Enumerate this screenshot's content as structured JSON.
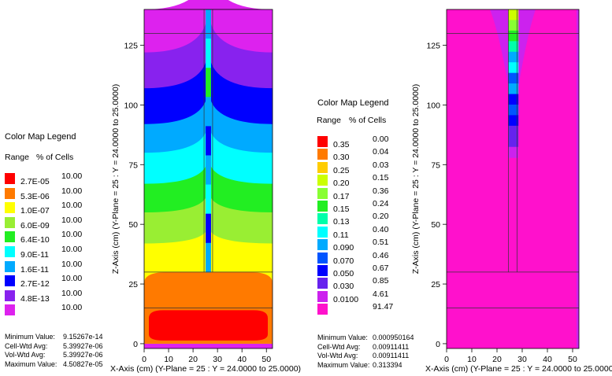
{
  "left_legend": {
    "title": "Color Map Legend",
    "range_header": "Range",
    "percent_header": "% of Cells",
    "items": [
      {
        "range": "2.7E-05",
        "percent": "10.00",
        "color": "#ff0000"
      },
      {
        "range": "5.3E-06",
        "percent": "10.00",
        "color": "#ff7a00"
      },
      {
        "range": "1.0E-07",
        "percent": "10.00",
        "color": "#ffff00"
      },
      {
        "range": "6.0E-09",
        "percent": "10.00",
        "color": "#99ee33"
      },
      {
        "range": "6.4E-10",
        "percent": "10.00",
        "color": "#22ee22"
      },
      {
        "range": "9.0E-11",
        "percent": "10.00",
        "color": "#00ffff"
      },
      {
        "range": "1.6E-11",
        "percent": "10.00",
        "color": "#00aaff"
      },
      {
        "range": "2.7E-12",
        "percent": "10.00",
        "color": "#0000ff"
      },
      {
        "range": "4.8E-13",
        "percent": "10.00",
        "color": "#8822ee"
      },
      {
        "range": "",
        "percent": "10.00",
        "color": "#dd22ee"
      }
    ],
    "stats": [
      {
        "label": "Minimum Value:",
        "value": "9.15267e-14"
      },
      {
        "label": "Cell-Wtd Avg:",
        "value": "5.39927e-06"
      },
      {
        "label": "Vol-Wtd Avg:",
        "value": "5.39927e-06"
      },
      {
        "label": "Maximum Value:",
        "value": "4.50827e-05"
      }
    ]
  },
  "right_legend": {
    "title": "Color Map Legend",
    "range_header": "Range",
    "percent_header": "% of Cells",
    "items": [
      {
        "range": "0.35",
        "percent": "0.00",
        "color": "#ff0000"
      },
      {
        "range": "0.30",
        "percent": "0.04",
        "color": "#ff7a00"
      },
      {
        "range": "0.25",
        "percent": "0.03",
        "color": "#ffcc00"
      },
      {
        "range": "0.20",
        "percent": "0.15",
        "color": "#ccff00"
      },
      {
        "range": "0.17",
        "percent": "0.36",
        "color": "#88ff33"
      },
      {
        "range": "0.15",
        "percent": "0.24",
        "color": "#22ee22"
      },
      {
        "range": "0.13",
        "percent": "0.20",
        "color": "#00ffaa"
      },
      {
        "range": "0.11",
        "percent": "0.40",
        "color": "#00ffff"
      },
      {
        "range": "0.090",
        "percent": "0.51",
        "color": "#00aaff"
      },
      {
        "range": "0.070",
        "percent": "0.46",
        "color": "#0055ff"
      },
      {
        "range": "0.050",
        "percent": "0.67",
        "color": "#0000ff"
      },
      {
        "range": "0.030",
        "percent": "0.85",
        "color": "#6622ee"
      },
      {
        "range": "0.0100",
        "percent": "4.61",
        "color": "#cc22ee"
      },
      {
        "range": "",
        "percent": "91.47",
        "color": "#ff11cc"
      }
    ],
    "stats": [
      {
        "label": "Minimum Value:",
        "value": "0.000950164"
      },
      {
        "label": "Cell-Wtd Avg:",
        "value": "0.00911411"
      },
      {
        "label": "Vol-Wtd Avg:",
        "value": "0.00911411"
      },
      {
        "label": "Maximum Value:",
        "value": "0.313394"
      }
    ]
  },
  "chart_data": [
    {
      "type": "heatmap",
      "xlabel": "X-Axis (cm) (Y-Plane = 25 : Y = 24.0000 to 25.0000)",
      "ylabel": "Z-Axis (cm) (Y-Plane = 25 : Y = 24.0000 to 25.0000)",
      "xlim": [
        0,
        52.5
      ],
      "ylim": [
        -2,
        140
      ],
      "x_ticks": [
        "0",
        "10",
        "20",
        "30",
        "40",
        "50"
      ],
      "y_ticks": [
        "0",
        "25",
        "50",
        "75",
        "100",
        "125"
      ],
      "x_tick_values": [
        0,
        10,
        20,
        30,
        40,
        50
      ],
      "y_tick_values": [
        0,
        25,
        50,
        75,
        100,
        125
      ],
      "geometry_lines": {
        "horizontal_z": [
          15,
          30,
          130
        ],
        "vertical_x": [
          24.5,
          28
        ]
      },
      "color_bands_z": [
        {
          "color_index": 0,
          "z_from": 0,
          "z_to": 14
        },
        {
          "color_index": 1,
          "z_from": 14,
          "z_to": 30
        },
        {
          "color_index": 2,
          "z_from": 30,
          "z_to": 42
        },
        {
          "color_index": 3,
          "z_from": 42,
          "z_to": 55
        },
        {
          "color_index": 4,
          "z_from": 55,
          "z_to": 67
        },
        {
          "color_index": 5,
          "z_from": 67,
          "z_to": 80
        },
        {
          "color_index": 6,
          "z_from": 80,
          "z_to": 92
        },
        {
          "color_index": 7,
          "z_from": 92,
          "z_to": 107
        },
        {
          "color_index": 8,
          "z_from": 107,
          "z_to": 122
        },
        {
          "color_index": 9,
          "z_from": 122,
          "z_to": 140
        }
      ]
    },
    {
      "type": "heatmap",
      "xlabel": "X-Axis (cm) (Y-Plane = 25 : Y = 24.0000 to 25.0000)",
      "ylabel": "Z-Axis (cm) (Y-Plane = 25 : Y = 24.0000 to 25.0000)",
      "xlim": [
        0,
        52.5
      ],
      "ylim": [
        -2,
        140
      ],
      "x_ticks": [
        "0",
        "10",
        "20",
        "30",
        "40",
        "50"
      ],
      "y_ticks": [
        "0",
        "25",
        "50",
        "75",
        "100",
        "125"
      ],
      "x_tick_values": [
        0,
        10,
        20,
        30,
        40,
        50
      ],
      "y_tick_values": [
        0,
        25,
        50,
        75,
        100,
        125
      ],
      "geometry_lines": {
        "horizontal_z": [
          15,
          30,
          130
        ],
        "vertical_x": [
          24.5,
          28
        ]
      },
      "background_color_index": 13,
      "channel_x": [
        24.5,
        28.5
      ]
    }
  ]
}
